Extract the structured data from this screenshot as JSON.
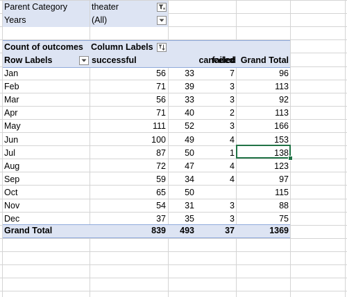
{
  "filters": [
    {
      "label": "Parent Category",
      "value": "theater",
      "filtered": true
    },
    {
      "label": "Years",
      "value": "(All)",
      "filtered": false
    }
  ],
  "pivot": {
    "value_field": "Count of outcomes",
    "column_labels": "Column Labels",
    "row_labels": "Row Labels",
    "columns": [
      "successful",
      "failed",
      "canceled",
      "Grand Total"
    ],
    "rows": [
      {
        "label": "Jan",
        "successful": "56",
        "failed": "33",
        "canceled": "7",
        "total": "96"
      },
      {
        "label": "Feb",
        "successful": "71",
        "failed": "39",
        "canceled": "3",
        "total": "113"
      },
      {
        "label": "Mar",
        "successful": "56",
        "failed": "33",
        "canceled": "3",
        "total": "92"
      },
      {
        "label": "Apr",
        "successful": "71",
        "failed": "40",
        "canceled": "2",
        "total": "113"
      },
      {
        "label": "May",
        "successful": "111",
        "failed": "52",
        "canceled": "3",
        "total": "166"
      },
      {
        "label": "Jun",
        "successful": "100",
        "failed": "49",
        "canceled": "4",
        "total": "153"
      },
      {
        "label": "Jul",
        "successful": "87",
        "failed": "50",
        "canceled": "1",
        "total": "138"
      },
      {
        "label": "Aug",
        "successful": "72",
        "failed": "47",
        "canceled": "4",
        "total": "123"
      },
      {
        "label": "Sep",
        "successful": "59",
        "failed": "34",
        "canceled": "4",
        "total": "97"
      },
      {
        "label": "Oct",
        "successful": "65",
        "failed": "50",
        "canceled": "",
        "total": "115"
      },
      {
        "label": "Nov",
        "successful": "54",
        "failed": "31",
        "canceled": "3",
        "total": "88"
      },
      {
        "label": "Dec",
        "successful": "37",
        "failed": "35",
        "canceled": "3",
        "total": "75"
      }
    ],
    "grand_total": {
      "label": "Grand Total",
      "successful": "839",
      "failed": "493",
      "canceled": "37",
      "total": "1369"
    }
  },
  "selected_cell": "Jul Grand Total",
  "colors": {
    "header_fill": "#dde4f3",
    "selection": "#217346",
    "gridline": "#d4d4d4"
  }
}
